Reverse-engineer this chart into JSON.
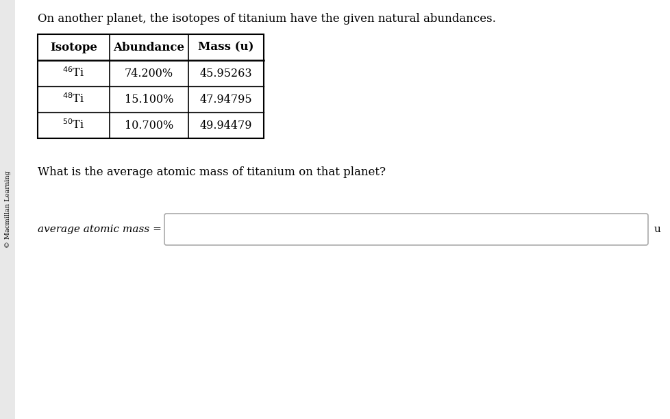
{
  "background_color": "#e8e8e8",
  "page_color": "#ffffff",
  "copyright_text": "© Macmillan Learning",
  "intro_text": "On another planet, the isotopes of titanium have the given natural abundances.",
  "table_headers": [
    "Isotope",
    "Abundance",
    "Mass (u)"
  ],
  "table_rows": [
    [
      "$^{46}$Ti",
      "74.200%",
      "45.95263"
    ],
    [
      "$^{48}$Ti",
      "15.100%",
      "47.94795"
    ],
    [
      "$^{50}$Ti",
      "10.700%",
      "49.94479"
    ]
  ],
  "question_text": "What is the average atomic mass of titanium on that planet?",
  "answer_label": "average atomic mass =",
  "answer_unit": "u",
  "font_size_intro": 12,
  "font_size_table_header": 12,
  "font_size_table_data": 11.5,
  "font_size_question": 12,
  "font_size_answer": 11,
  "font_size_copyright": 7
}
